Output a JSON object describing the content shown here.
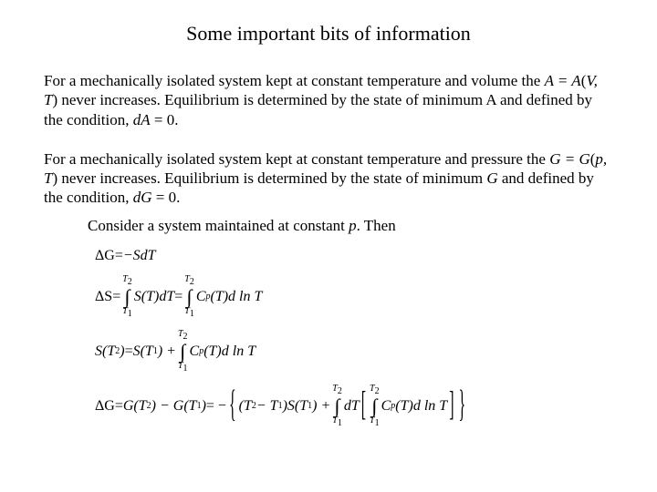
{
  "title": "Some important bits of information",
  "para1_a": "For a mechanically isolated system kept at constant temperature and volume the ",
  "para1_b": "A = A",
  "para1_c": "(",
  "para1_d": "V, T",
  "para1_e": ") never increases.  Equilibrium is determined by the state of minimum A and defined by the condition, ",
  "para1_f": "dA",
  "para1_g": " = 0.",
  "para2_a": "For a mechanically isolated system kept at constant temperature and pressure the ",
  "para2_b": "G = G",
  "para2_c": "(",
  "para2_d": "p, T",
  "para2_e": ") never increases.  Equilibrium is determined by the state of minimum ",
  "para2_f": "G",
  "para2_g": " and defined by the condition, ",
  "para2_h": "dG",
  "para2_i": " = 0.",
  "sub1_a": "Consider a system maintained at constant ",
  "sub1_b": "p",
  "sub1_c": ". Then",
  "eq1": {
    "lhs": "ΔG",
    "eq": " = ",
    "rhs": "−SdT"
  },
  "eq2": {
    "lhs": "ΔS",
    "eq": " = ",
    "T1": "T",
    "s1": "1",
    "T2": "T",
    "s2": "2",
    "int": "∫",
    "body1": "S(T)dT",
    "body2": "C",
    "bodyp": "p",
    "body3": "(T)d ln T"
  },
  "eq3": {
    "lhs1": "S(T",
    "lhs2": "2",
    "lhs3": ")",
    "eq": " = ",
    "rhs1": "S(T",
    "rhs2": "1",
    "rhs3": ") + ",
    "T1": "T",
    "s1": "1",
    "T2": "T",
    "s2": "2",
    "int": "∫",
    "body1": "C",
    "bodyp": "p",
    "body2": "(T)d ln T"
  },
  "eq4": {
    "lhs1": "ΔG",
    "eq": " = ",
    "g1": "G(T",
    "g1s": "2",
    "g2": ") − G(T",
    "g2s": "1",
    "g3": ")",
    "eq2": " = −",
    "p1": "(T",
    "p1s": "2",
    "p2": " − T",
    "p2s": "1",
    "p3": ")S(T",
    "p3s": "1",
    "p4": ") + ",
    "T1": "T",
    "s1": "1",
    "T2": "T",
    "s2": "2",
    "int": "∫",
    "dt": "dT",
    "cp1": "C",
    "cpp": "p",
    "cp2": "(T)d ln T",
    "lb": "[",
    "rb": "]",
    "lc": "{",
    "rc": "}"
  }
}
